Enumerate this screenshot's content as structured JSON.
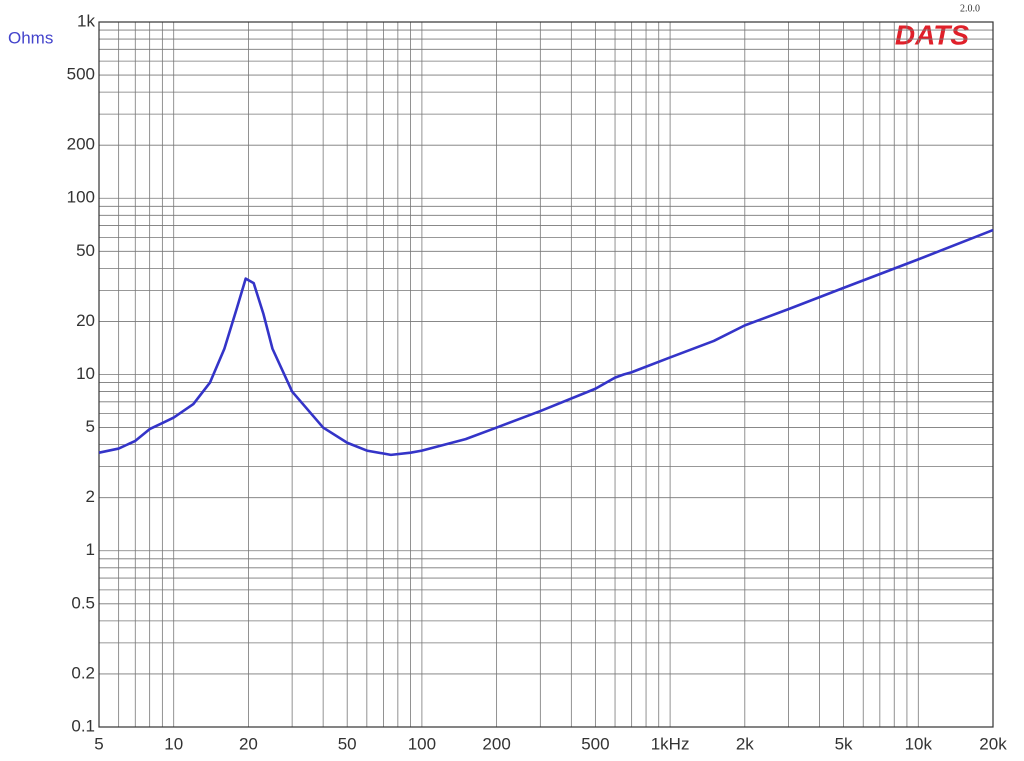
{
  "chart_data": {
    "type": "line",
    "y_label": "Ohms",
    "logo": "DATS",
    "version": "2.0.0",
    "xlog": true,
    "ylog": true,
    "grid": true,
    "color": "#3434c8",
    "xlim": [
      5,
      20000
    ],
    "ylim": [
      0.1,
      1000
    ],
    "xticks": [
      5,
      10,
      20,
      50,
      100,
      200,
      500,
      {
        "value": 1000,
        "label": "1kHz"
      },
      {
        "value": 2000,
        "label": "2k"
      },
      {
        "value": 5000,
        "label": "5k"
      },
      {
        "value": 10000,
        "label": "10k"
      },
      {
        "value": 20000,
        "label": "20k"
      }
    ],
    "yticks": [
      0.1,
      0.2,
      0.5,
      1,
      2,
      5,
      10,
      20,
      50,
      100,
      200,
      500,
      {
        "value": 1000,
        "label": "1k"
      }
    ],
    "xminorticks": [
      6,
      7,
      8,
      9,
      30,
      40,
      60,
      70,
      80,
      90,
      300,
      400,
      600,
      700,
      800,
      900,
      3000,
      4000,
      6000,
      7000,
      8000,
      9000
    ],
    "yminorticks": [
      0.3,
      0.4,
      0.6,
      0.7,
      0.8,
      0.9,
      3,
      4,
      6,
      7,
      8,
      9,
      30,
      40,
      60,
      70,
      80,
      90,
      300,
      400,
      600,
      700,
      800,
      900
    ],
    "x": [
      5,
      6,
      7,
      8,
      9,
      10,
      12,
      14,
      16,
      18,
      19.5,
      21,
      23,
      25,
      30,
      40,
      50,
      60,
      75,
      90,
      100,
      150,
      200,
      300,
      500,
      600,
      650,
      700,
      1000,
      1500,
      2000,
      3000,
      5000,
      10000,
      20000
    ],
    "values": [
      3.6,
      3.8,
      4.2,
      4.9,
      5.3,
      5.7,
      6.8,
      9,
      14,
      24,
      35,
      33,
      22,
      14,
      8,
      5,
      4.1,
      3.7,
      3.5,
      3.6,
      3.7,
      4.3,
      5,
      6.2,
      8.3,
      9.6,
      10,
      10.3,
      12.5,
      15.5,
      19,
      23.5,
      31,
      45,
      66
    ]
  }
}
